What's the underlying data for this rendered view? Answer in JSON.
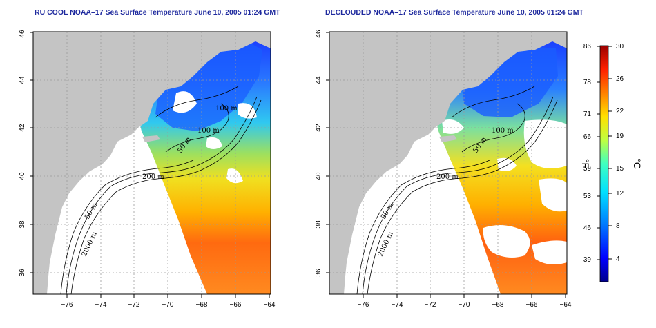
{
  "panels": [
    {
      "id": "left",
      "title": "RU COOL NOAA–17 Sea Surface Temperature June 10, 2005 01:24 GMT",
      "contour_labels": [
        "100 m",
        "100 m",
        "50 m",
        "200 m",
        "50 m",
        "2000 m"
      ]
    },
    {
      "id": "right",
      "title": "DECLOUDED NOAA–17 Sea Surface Temperature June 10, 2005 01:24 GMT",
      "contour_labels": [
        "100 m",
        "50 m",
        "200 m",
        "50 m",
        "2000 m"
      ]
    }
  ],
  "axes": {
    "x_ticks": [
      "−76",
      "−74",
      "−72",
      "−70",
      "−68",
      "−66",
      "−64"
    ],
    "y_ticks": [
      "36",
      "38",
      "40",
      "42",
      "44",
      "46"
    ]
  },
  "colorbar": {
    "fahrenheit_ticks": [
      "86",
      "78",
      "71",
      "66",
      "59",
      "53",
      "46",
      "39"
    ],
    "celsius_ticks": [
      "30",
      "26",
      "22",
      "19",
      "15",
      "12",
      "8",
      "4"
    ],
    "fahrenheit_unit": "°F",
    "celsius_unit": "°C",
    "colors": [
      "#00008b",
      "#0000ff",
      "#0080ff",
      "#00e0ff",
      "#40ffc0",
      "#c0ff40",
      "#ffe000",
      "#ff8000",
      "#ff2000",
      "#9a0000"
    ]
  },
  "colors": {
    "land": "#c4c4c4",
    "ocean_nodata": "#ffffff",
    "title": "#1f2a9e",
    "grid": "#9a9a9a"
  }
}
